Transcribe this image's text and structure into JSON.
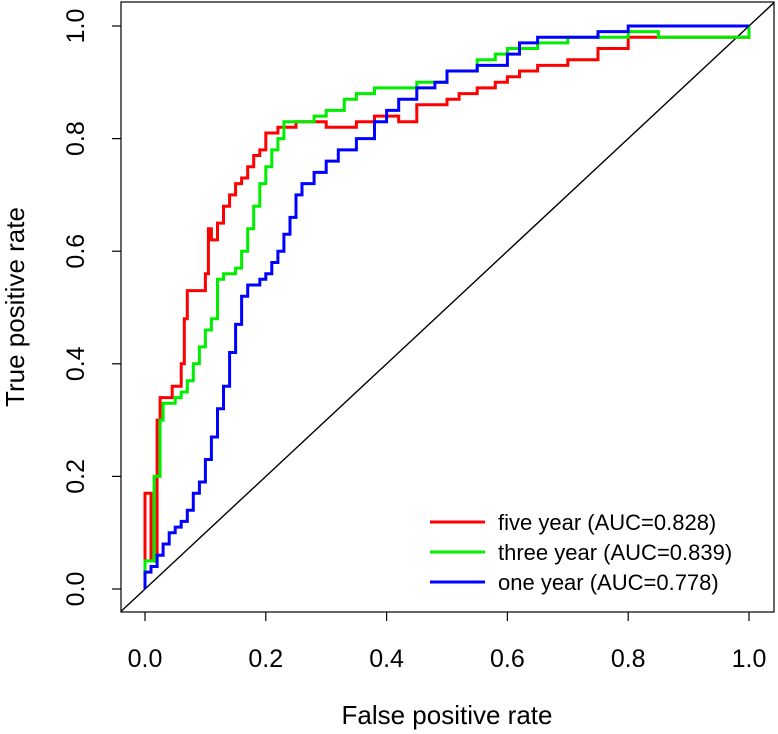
{
  "chart_data": {
    "type": "line",
    "title": "",
    "xlabel": "False positive rate",
    "ylabel": "True positive rate",
    "xlim": [
      0,
      1
    ],
    "ylim": [
      0,
      1
    ],
    "xticks": [
      0,
      0.2,
      0.4,
      0.6,
      0.8,
      1
    ],
    "yticks": [
      0,
      0.2,
      0.4,
      0.6,
      0.8,
      1
    ],
    "xtick_labels": [
      "0.0",
      "0.2",
      "0.4",
      "0.6",
      "0.8",
      "1.0"
    ],
    "ytick_labels": [
      "0.0",
      "0.2",
      "0.4",
      "0.6",
      "0.8",
      "1.0"
    ],
    "grid": false,
    "legend_position": "bottom-right",
    "reference_line": {
      "x": [
        0,
        1
      ],
      "y": [
        0,
        1
      ],
      "color": "#000000"
    },
    "series": [
      {
        "name": "five year (AUC=0.828)",
        "color": "#ff0000",
        "x": [
          0,
          0,
          0.01,
          0.01,
          0.02,
          0.02,
          0.025,
          0.025,
          0.04,
          0.045,
          0.05,
          0.06,
          0.065,
          0.07,
          0.075,
          0.09,
          0.1,
          0.105,
          0.11,
          0.12,
          0.13,
          0.14,
          0.15,
          0.16,
          0.17,
          0.18,
          0.19,
          0.2,
          0.21,
          0.22,
          0.23,
          0.25,
          0.28,
          0.3,
          0.33,
          0.35,
          0.38,
          0.4,
          0.42,
          0.45,
          0.47,
          0.5,
          0.52,
          0.55,
          0.58,
          0.6,
          0.62,
          0.65,
          0.7,
          0.75,
          0.8,
          0.85,
          0.9,
          0.95,
          1
        ],
        "y": [
          0,
          0.17,
          0.17,
          0.05,
          0.05,
          0.3,
          0.3,
          0.34,
          0.34,
          0.36,
          0.36,
          0.4,
          0.48,
          0.53,
          0.53,
          0.53,
          0.56,
          0.64,
          0.62,
          0.65,
          0.68,
          0.7,
          0.72,
          0.73,
          0.75,
          0.77,
          0.78,
          0.81,
          0.81,
          0.82,
          0.82,
          0.83,
          0.83,
          0.82,
          0.82,
          0.83,
          0.84,
          0.84,
          0.83,
          0.86,
          0.86,
          0.87,
          0.88,
          0.89,
          0.9,
          0.91,
          0.92,
          0.93,
          0.94,
          0.96,
          0.98,
          0.98,
          0.98,
          0.98,
          1
        ]
      },
      {
        "name": "three year (AUC=0.839)",
        "color": "#00ee00",
        "x": [
          0,
          0,
          0.01,
          0.015,
          0.02,
          0.025,
          0.025,
          0.03,
          0.04,
          0.05,
          0.06,
          0.07,
          0.08,
          0.09,
          0.1,
          0.11,
          0.12,
          0.13,
          0.15,
          0.16,
          0.17,
          0.18,
          0.19,
          0.2,
          0.21,
          0.22,
          0.23,
          0.25,
          0.28,
          0.3,
          0.33,
          0.35,
          0.38,
          0.4,
          0.45,
          0.5,
          0.55,
          0.58,
          0.6,
          0.62,
          0.65,
          0.7,
          0.75,
          0.8,
          0.85,
          0.9,
          0.95,
          1
        ],
        "y": [
          0,
          0.05,
          0.05,
          0.2,
          0.2,
          0.25,
          0.3,
          0.33,
          0.33,
          0.34,
          0.35,
          0.37,
          0.4,
          0.43,
          0.46,
          0.48,
          0.55,
          0.56,
          0.57,
          0.6,
          0.64,
          0.68,
          0.72,
          0.75,
          0.78,
          0.8,
          0.83,
          0.83,
          0.84,
          0.85,
          0.87,
          0.88,
          0.89,
          0.89,
          0.9,
          0.92,
          0.94,
          0.95,
          0.96,
          0.96,
          0.97,
          0.98,
          0.98,
          0.99,
          0.98,
          0.98,
          0.98,
          1
        ]
      },
      {
        "name": "one year (AUC=0.778)",
        "color": "#0000ff",
        "x": [
          0,
          0,
          0.01,
          0.02,
          0.03,
          0.04,
          0.05,
          0.06,
          0.07,
          0.08,
          0.09,
          0.1,
          0.11,
          0.12,
          0.13,
          0.14,
          0.15,
          0.16,
          0.17,
          0.18,
          0.19,
          0.2,
          0.21,
          0.22,
          0.23,
          0.24,
          0.25,
          0.26,
          0.28,
          0.3,
          0.32,
          0.35,
          0.38,
          0.4,
          0.42,
          0.45,
          0.48,
          0.5,
          0.55,
          0.6,
          0.62,
          0.65,
          0.7,
          0.75,
          0.8,
          0.85,
          0.9,
          0.95,
          1
        ],
        "y": [
          0,
          0.03,
          0.04,
          0.06,
          0.08,
          0.1,
          0.11,
          0.12,
          0.14,
          0.17,
          0.19,
          0.23,
          0.27,
          0.32,
          0.36,
          0.42,
          0.47,
          0.52,
          0.54,
          0.54,
          0.55,
          0.56,
          0.58,
          0.6,
          0.63,
          0.66,
          0.7,
          0.72,
          0.74,
          0.76,
          0.78,
          0.8,
          0.83,
          0.85,
          0.87,
          0.89,
          0.9,
          0.92,
          0.93,
          0.95,
          0.97,
          0.98,
          0.98,
          0.99,
          1,
          1,
          1,
          1,
          1
        ]
      }
    ]
  }
}
